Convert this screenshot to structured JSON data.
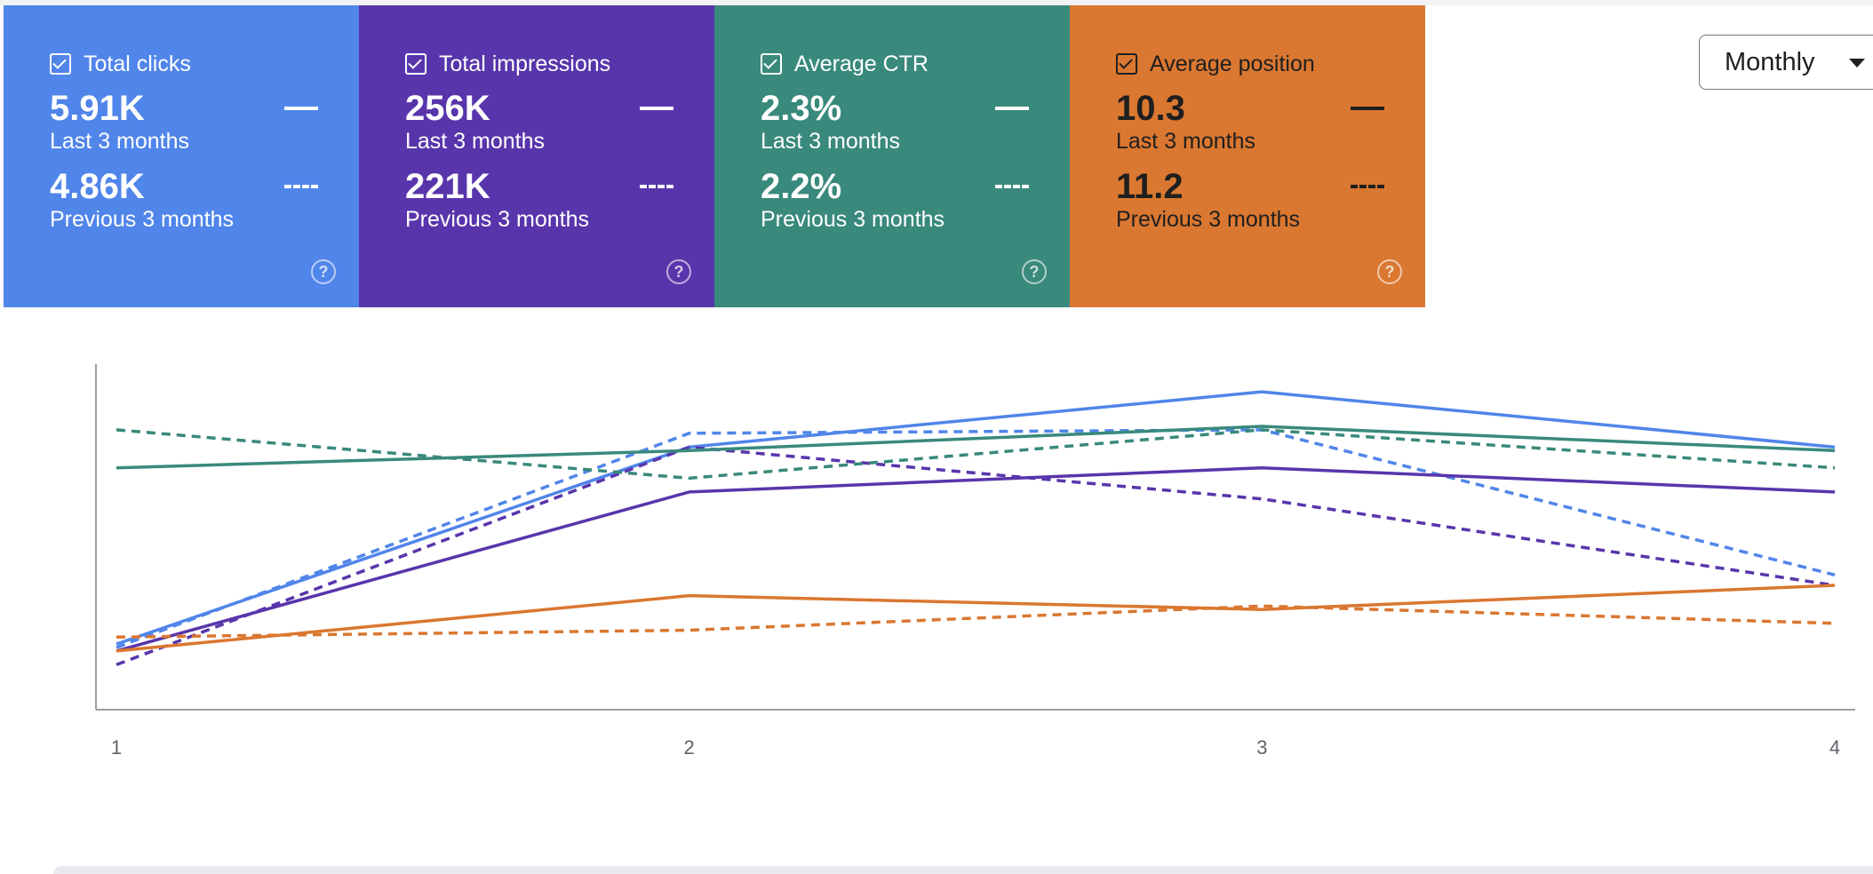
{
  "metrics": [
    {
      "title": "Total clicks",
      "value_current": "5.91K",
      "label_current": "Last 3 months",
      "value_previous": "4.86K",
      "label_previous": "Previous 3 months",
      "color": "#5085EA",
      "checked": true
    },
    {
      "title": "Total impressions",
      "value_current": "256K",
      "label_current": "Last 3 months",
      "value_previous": "221K",
      "label_previous": "Previous 3 months",
      "color": "#5935AB",
      "checked": true
    },
    {
      "title": "Average CTR",
      "value_current": "2.3%",
      "label_current": "Last 3 months",
      "value_previous": "2.2%",
      "label_previous": "Previous 3 months",
      "color": "#39897C",
      "checked": true
    },
    {
      "title": "Average position",
      "value_current": "10.3",
      "label_current": "Last 3 months",
      "value_previous": "11.2",
      "label_previous": "Previous 3 months",
      "color": "#DA7730",
      "checked": true
    }
  ],
  "icons": {
    "checkbox": "checkbox-checked-icon",
    "help": "help-circle-icon",
    "dropdown": "caret-down-icon"
  },
  "period_selector": {
    "value": "Monthly"
  },
  "chart_data": {
    "type": "line",
    "x": [
      1,
      2,
      3,
      4
    ],
    "tick_labels": [
      "1",
      "2",
      "3",
      "4"
    ],
    "ylim": [
      0,
      100
    ],
    "grid": false,
    "series": [
      {
        "metric": "clicks",
        "period": "current",
        "style": "solid",
        "color": "#5085EA",
        "values": [
          19,
          76,
          92,
          76
        ]
      },
      {
        "metric": "clicks",
        "period": "previous",
        "style": "dashed",
        "color": "#5085EA",
        "values": [
          18,
          80,
          81,
          39
        ]
      },
      {
        "metric": "impressions",
        "period": "current",
        "style": "solid",
        "color": "#5935AB",
        "values": [
          17,
          63,
          70,
          63
        ]
      },
      {
        "metric": "impressions",
        "period": "previous",
        "style": "dashed",
        "color": "#5935AB",
        "values": [
          13,
          76,
          61,
          36
        ]
      },
      {
        "metric": "ctr",
        "period": "current",
        "style": "solid",
        "color": "#39897C",
        "values": [
          70,
          75,
          82,
          75
        ]
      },
      {
        "metric": "ctr",
        "period": "previous",
        "style": "dashed",
        "color": "#39897C",
        "values": [
          81,
          67,
          81,
          70
        ]
      },
      {
        "metric": "position",
        "period": "current",
        "style": "solid",
        "color": "#DA7730",
        "values": [
          17,
          33,
          29,
          36
        ]
      },
      {
        "metric": "position",
        "period": "previous",
        "style": "dashed",
        "color": "#DA7730",
        "values": [
          21,
          23,
          30,
          25
        ]
      }
    ]
  }
}
